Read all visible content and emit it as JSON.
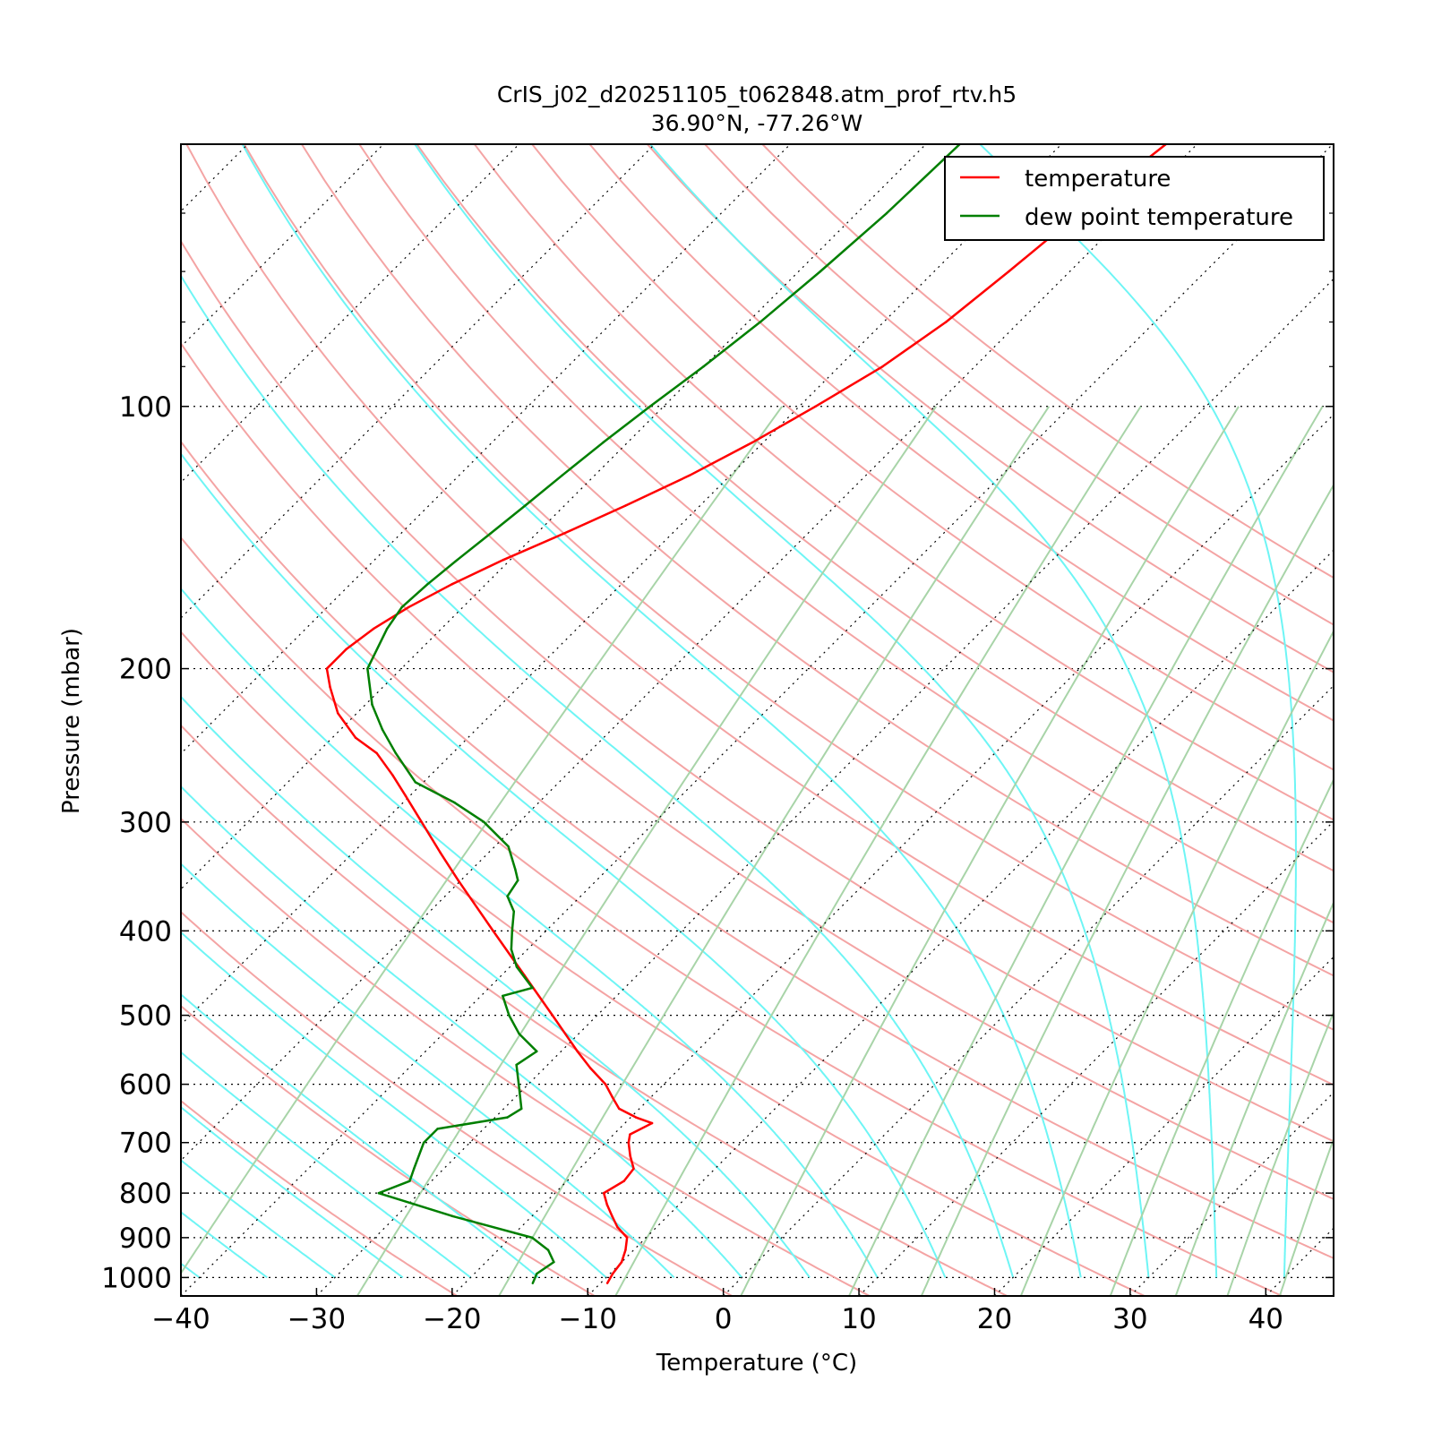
{
  "chart_data": {
    "type": "line",
    "subtype": "skew-t log-p diagram",
    "title": "CrIS_j02_d20251105_t062848.atm_prof_rtv.h5",
    "subtitle": "36.90°N, -77.26°W",
    "xlabel": "Temperature (°C)",
    "ylabel": "Pressure (mbar)",
    "xlim": [
      -40,
      45
    ],
    "ylim": [
      1050,
      50
    ],
    "y_scale": "log",
    "skew": "isotherms tilted 45°",
    "x_ticks": [
      "−40",
      "−30",
      "−20",
      "−10",
      "0",
      "10",
      "20",
      "30",
      "40"
    ],
    "y_ticks": [
      "100",
      "200",
      "300",
      "400",
      "500",
      "600",
      "700",
      "800",
      "900",
      "1000"
    ],
    "grid": "horizontal dotted lines at labeled pressures, dotted skewed isotherms every 10°C",
    "background_lines": {
      "dry_adiabats_color": "#f4a4a4",
      "moist_adiabats_color": "#6ef5f5",
      "mixing_ratio_color": "#a8d4a8",
      "isotherm_color": "#000000"
    },
    "legend": {
      "placement": "top-right",
      "entries": [
        "temperature",
        "dew point temperature"
      ]
    },
    "series": [
      {
        "name": "temperature",
        "color": "#ff0000",
        "points": [
          {
            "p": 1015,
            "t": -9.5
          },
          {
            "p": 990,
            "t": -9.8
          },
          {
            "p": 960,
            "t": -10.0
          },
          {
            "p": 930,
            "t": -10.6
          },
          {
            "p": 900,
            "t": -11.4
          },
          {
            "p": 875,
            "t": -12.9
          },
          {
            "p": 850,
            "t": -14.1
          },
          {
            "p": 825,
            "t": -15.3
          },
          {
            "p": 800,
            "t": -16.4
          },
          {
            "p": 775,
            "t": -15.8
          },
          {
            "p": 750,
            "t": -16.0
          },
          {
            "p": 725,
            "t": -17.2
          },
          {
            "p": 700,
            "t": -18.3
          },
          {
            "p": 685,
            "t": -18.8
          },
          {
            "p": 665,
            "t": -18.0
          },
          {
            "p": 655,
            "t": -19.6
          },
          {
            "p": 640,
            "t": -21.5
          },
          {
            "p": 620,
            "t": -22.9
          },
          {
            "p": 600,
            "t": -24.3
          },
          {
            "p": 575,
            "t": -26.6
          },
          {
            "p": 550,
            "t": -28.8
          },
          {
            "p": 500,
            "t": -33.3
          },
          {
            "p": 450,
            "t": -38.3
          },
          {
            "p": 400,
            "t": -43.9
          },
          {
            "p": 350,
            "t": -50.2
          },
          {
            "p": 325,
            "t": -53.6
          },
          {
            "p": 300,
            "t": -57.2
          },
          {
            "p": 280,
            "t": -60.3
          },
          {
            "p": 265,
            "t": -62.8
          },
          {
            "p": 250,
            "t": -65.6
          },
          {
            "p": 240,
            "t": -68.3
          },
          {
            "p": 225,
            "t": -71.4
          },
          {
            "p": 210,
            "t": -73.9
          },
          {
            "p": 200,
            "t": -75.5
          },
          {
            "p": 190,
            "t": -75.5
          },
          {
            "p": 180,
            "t": -75.0
          },
          {
            "p": 170,
            "t": -74.0
          },
          {
            "p": 160,
            "t": -72.5
          },
          {
            "p": 150,
            "t": -70.5
          },
          {
            "p": 140,
            "t": -68.0
          },
          {
            "p": 130,
            "t": -65.5
          },
          {
            "p": 120,
            "t": -63.0
          },
          {
            "p": 110,
            "t": -60.8
          },
          {
            "p": 100,
            "t": -58.8
          },
          {
            "p": 90,
            "t": -56.8
          },
          {
            "p": 80,
            "t": -55.4
          },
          {
            "p": 70,
            "t": -54.5
          },
          {
            "p": 60,
            "t": -53.6
          },
          {
            "p": 55,
            "t": -53.0
          },
          {
            "p": 50,
            "t": -52.3
          }
        ]
      },
      {
        "name": "dew point temperature",
        "color": "#007f00",
        "points": [
          {
            "p": 1015,
            "t": -15.0
          },
          {
            "p": 990,
            "t": -15.4
          },
          {
            "p": 960,
            "t": -15.0
          },
          {
            "p": 930,
            "t": -16.3
          },
          {
            "p": 900,
            "t": -18.4
          },
          {
            "p": 850,
            "t": -25.9
          },
          {
            "p": 800,
            "t": -33.0
          },
          {
            "p": 775,
            "t": -31.6
          },
          {
            "p": 750,
            "t": -32.2
          },
          {
            "p": 700,
            "t": -33.4
          },
          {
            "p": 675,
            "t": -33.4
          },
          {
            "p": 655,
            "t": -29.1
          },
          {
            "p": 640,
            "t": -28.7
          },
          {
            "p": 600,
            "t": -30.7
          },
          {
            "p": 570,
            "t": -32.3
          },
          {
            "p": 550,
            "t": -31.8
          },
          {
            "p": 525,
            "t": -34.4
          },
          {
            "p": 500,
            "t": -36.5
          },
          {
            "p": 475,
            "t": -38.4
          },
          {
            "p": 465,
            "t": -36.8
          },
          {
            "p": 440,
            "t": -39.5
          },
          {
            "p": 420,
            "t": -41.2
          },
          {
            "p": 400,
            "t": -42.5
          },
          {
            "p": 380,
            "t": -43.8
          },
          {
            "p": 365,
            "t": -45.4
          },
          {
            "p": 350,
            "t": -45.8
          },
          {
            "p": 340,
            "t": -46.8
          },
          {
            "p": 320,
            "t": -49.0
          },
          {
            "p": 300,
            "t": -52.6
          },
          {
            "p": 285,
            "t": -56.2
          },
          {
            "p": 270,
            "t": -60.6
          },
          {
            "p": 250,
            "t": -64.2
          },
          {
            "p": 235,
            "t": -66.9
          },
          {
            "p": 220,
            "t": -69.5
          },
          {
            "p": 200,
            "t": -72.5
          },
          {
            "p": 180,
            "t": -74.0
          },
          {
            "p": 170,
            "t": -74.5
          },
          {
            "p": 160,
            "t": -74.3
          },
          {
            "p": 150,
            "t": -73.9
          },
          {
            "p": 140,
            "t": -73.4
          },
          {
            "p": 130,
            "t": -72.9
          },
          {
            "p": 120,
            "t": -72.4
          },
          {
            "p": 110,
            "t": -71.8
          },
          {
            "p": 100,
            "t": -71.0
          },
          {
            "p": 90,
            "t": -70.0
          },
          {
            "p": 80,
            "t": -69.1
          },
          {
            "p": 70,
            "t": -68.4
          },
          {
            "p": 60,
            "t": -67.8
          },
          {
            "p": 50,
            "t": -67.5
          }
        ]
      }
    ]
  }
}
